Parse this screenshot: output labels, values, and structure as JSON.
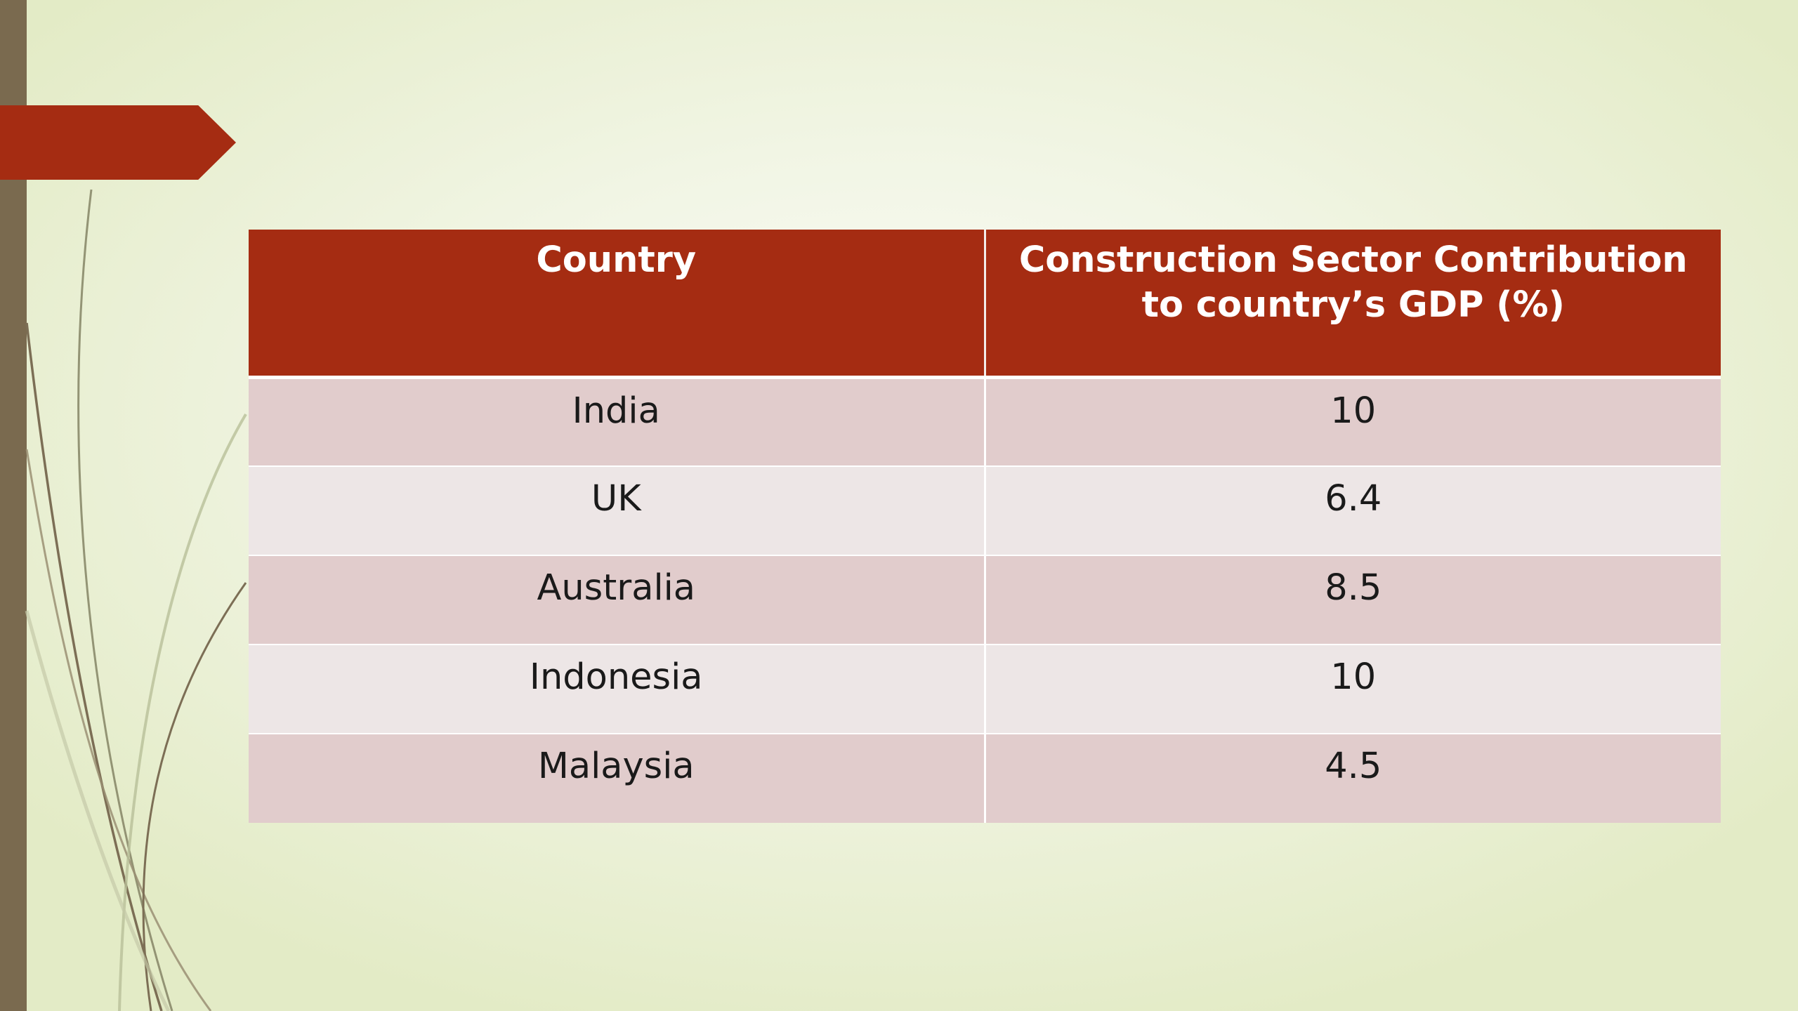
{
  "table": {
    "headers": [
      "Country",
      "Construction Sector Contribution to country’s GDP (%)"
    ],
    "rows": [
      [
        "India",
        "10"
      ],
      [
        "UK",
        "6.4"
      ],
      [
        "Australia",
        "8.5"
      ],
      [
        "Indonesia",
        "10"
      ],
      [
        "Malaysia",
        "4.5"
      ]
    ]
  },
  "colors": {
    "accent": "#a52c12",
    "sidebar": "#7a6a4f",
    "row_odd": "#e1cccc",
    "row_even": "#ede6e6"
  }
}
